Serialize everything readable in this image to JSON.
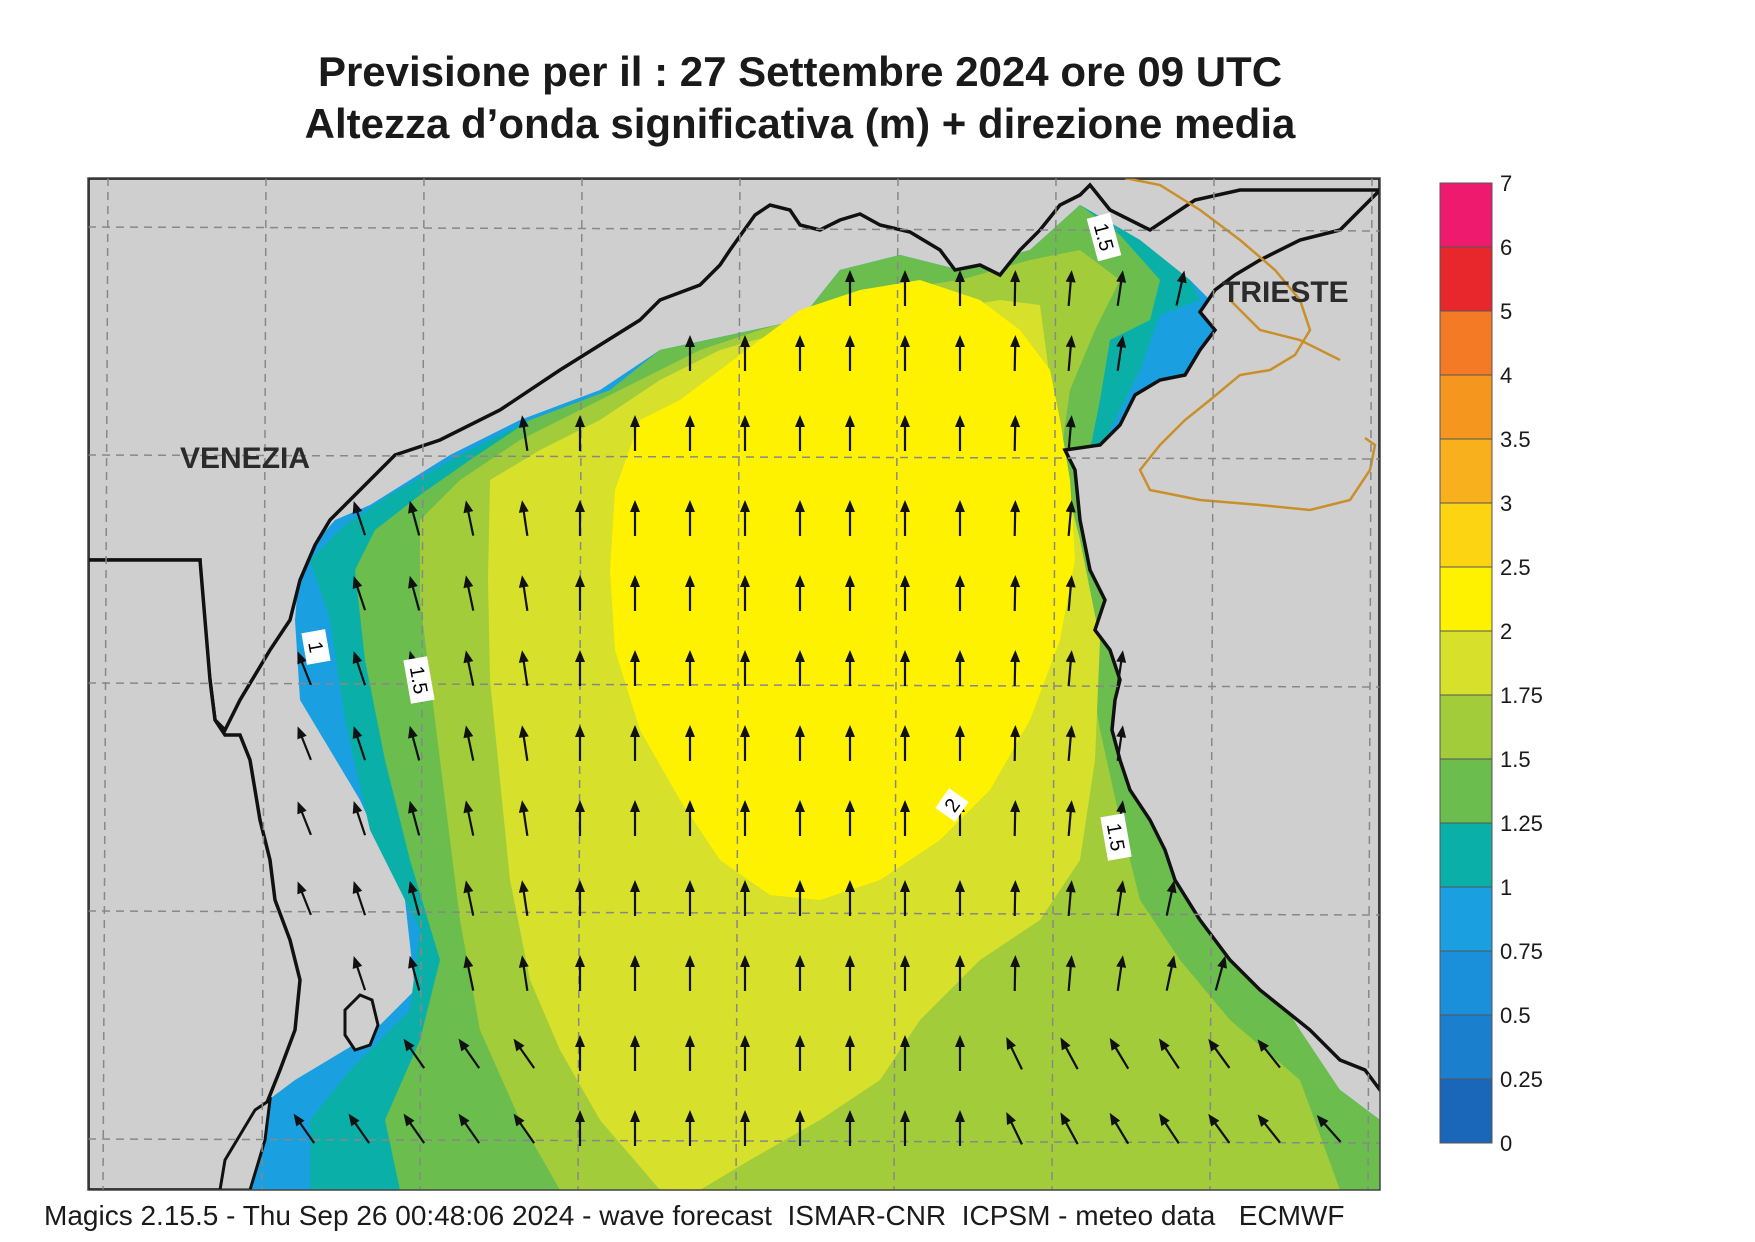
{
  "header": {
    "title_line1": "Previsione per il  :  27 Settembre 2024   ore 09 UTC",
    "title_line2": "Altezza d’onda significativa (m) + direzione media"
  },
  "map": {
    "cities": {
      "venezia": "VENEZIA",
      "trieste": "TRIESTE"
    },
    "contour_labels": {
      "c1": "1",
      "c15a": "1.5",
      "c15b": "1.5",
      "c15c": "1.5",
      "c2": "2"
    },
    "colors": {
      "land": "#cfcfcf",
      "sea_yellow": "#fff200",
      "sea_yellowgreen": "#d7e02a",
      "sea_lightgreen": "#a3cc3b",
      "sea_green": "#6bbd4e",
      "sea_teal": "#0ab0a8",
      "sea_blue": "#1aa0e0",
      "border": "#c9902a"
    }
  },
  "legend": {
    "ticks": [
      "7",
      "6",
      "5",
      "4",
      "3.5",
      "3",
      "2.5",
      "2",
      "1.75",
      "1.5",
      "1.25",
      "1",
      "0.75",
      "0.5",
      "0.25",
      "0"
    ],
    "colors": [
      "#ee1a6e",
      "#e8272c",
      "#f57a25",
      "#f5961f",
      "#f8b11c",
      "#fcd412",
      "#fff200",
      "#d7e02a",
      "#a3cc3b",
      "#6bbd4e",
      "#0ab0a8",
      "#1aa0e0",
      "#1a90da",
      "#1a80ce",
      "#1a66b8"
    ]
  },
  "footer": {
    "text": "Magics 2.15.5 - Thu Sep 26 00:48:06 2024 - wave forecast  ISMAR-CNR  ICPSM - meteo data   ECMWF"
  }
}
